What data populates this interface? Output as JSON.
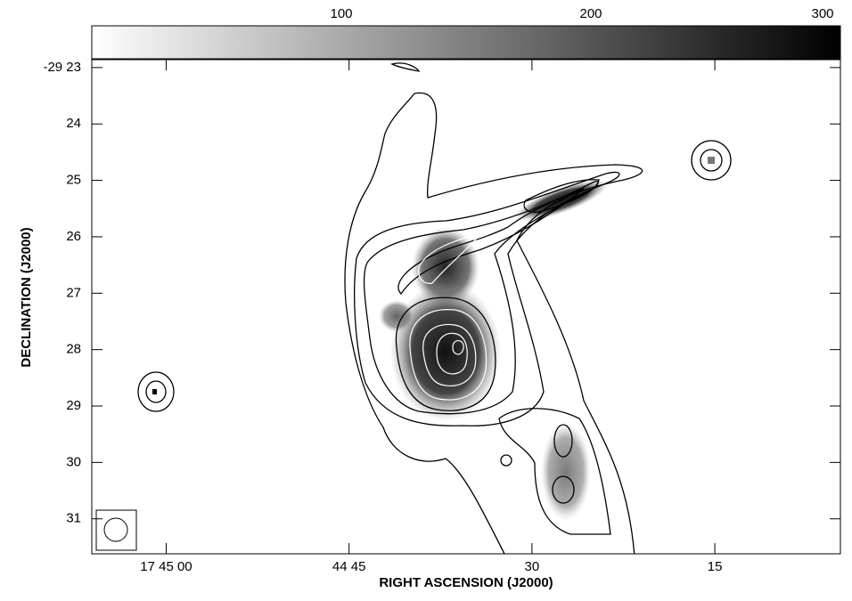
{
  "chart_data": {
    "type": "image",
    "xlabel": "RIGHT ASCENSION (J2000)",
    "ylabel": "DECLINATION (J2000)",
    "xlim": [
      66.1,
      4.7
    ],
    "ylim": [
      22.86,
      31.62
    ],
    "xticks": [
      {
        "value": 60,
        "label": "17 45 00"
      },
      {
        "value": 45,
        "label": "44 45"
      },
      {
        "value": 30,
        "label": "30"
      },
      {
        "value": 15,
        "label": "15"
      }
    ],
    "yticks": [
      {
        "value": 23,
        "label": "-29 23"
      },
      {
        "value": 24,
        "label": "24"
      },
      {
        "value": 25,
        "label": "25"
      },
      {
        "value": 26,
        "label": "26"
      },
      {
        "value": 27,
        "label": "27"
      },
      {
        "value": 28,
        "label": "28"
      },
      {
        "value": 29,
        "label": "29"
      },
      {
        "value": 30,
        "label": "30"
      },
      {
        "value": 31,
        "label": "31"
      }
    ],
    "colorbar": {
      "lim": [
        0,
        300
      ],
      "ticks": [
        100,
        200,
        300
      ]
    }
  }
}
